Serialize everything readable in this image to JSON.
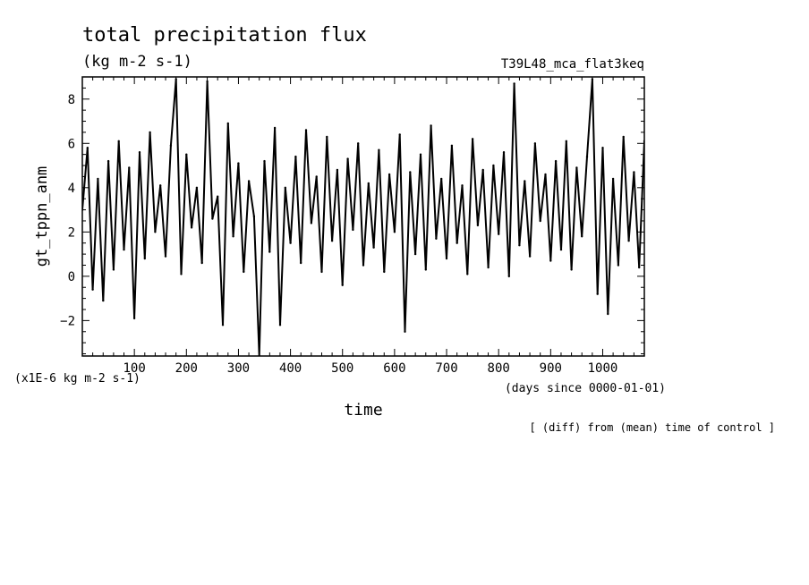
{
  "header": {
    "title": "total precipitation flux",
    "units": "(kg m-2 s-1)",
    "experiment": "T39L48_mca_flat3keq",
    "scale_note": "(x1E-6 kg m-2 s-1)",
    "xaxis_note": "(days since 0000-01-01)",
    "footer": "[ (diff) from (mean) time of control ]"
  },
  "chart_data": {
    "type": "line",
    "title": "total precipitation flux",
    "xlabel": "time",
    "ylabel": "gt_tppn_anm",
    "xlim": [
      0,
      1080
    ],
    "ylim": [
      -3.6,
      9.0
    ],
    "x_ticks": [
      100,
      200,
      300,
      400,
      500,
      600,
      700,
      800,
      900,
      1000
    ],
    "y_ticks": [
      -2,
      0,
      2,
      4,
      6,
      8
    ],
    "grid": false,
    "legend": "none",
    "color": "#000000",
    "series": [
      {
        "x": [
          0,
          10,
          20,
          30,
          40,
          50,
          60,
          70,
          80,
          90,
          100,
          110,
          120,
          130,
          140,
          150,
          160,
          170,
          180,
          190,
          200,
          210,
          220,
          230,
          240,
          250,
          260,
          270,
          280,
          290,
          300,
          310,
          320,
          330,
          340,
          350,
          360,
          370,
          380,
          390,
          400,
          410,
          420,
          430,
          440,
          450,
          460,
          470,
          480,
          490,
          500,
          510,
          520,
          530,
          540,
          550,
          560,
          570,
          580,
          590,
          600,
          610,
          620,
          630,
          640,
          650,
          660,
          670,
          680,
          690,
          700,
          710,
          720,
          730,
          740,
          750,
          760,
          770,
          780,
          790,
          800,
          810,
          820,
          830,
          840,
          850,
          860,
          870,
          880,
          890,
          900,
          910,
          920,
          930,
          940,
          950,
          960,
          970,
          980,
          990,
          1000,
          1010,
          1020,
          1030,
          1040,
          1050,
          1060,
          1070,
          1080
        ],
        "values": [
          3.0,
          5.8,
          -0.6,
          4.4,
          -1.1,
          5.2,
          0.3,
          6.1,
          1.2,
          4.9,
          -1.9,
          5.6,
          0.8,
          6.5,
          2.0,
          4.1,
          0.9,
          5.9,
          8.9,
          0.1,
          5.5,
          2.2,
          4.0,
          0.6,
          8.8,
          2.6,
          3.6,
          -2.2,
          6.9,
          1.8,
          5.1,
          0.2,
          4.3,
          2.7,
          -3.6,
          5.2,
          1.1,
          6.7,
          -2.2,
          4.0,
          1.5,
          5.4,
          0.6,
          6.6,
          2.4,
          4.5,
          0.2,
          6.3,
          1.6,
          4.8,
          -0.4,
          5.3,
          2.1,
          6.0,
          0.5,
          4.2,
          1.3,
          5.7,
          0.2,
          4.6,
          2.0,
          6.4,
          -2.5,
          4.7,
          1.0,
          5.5,
          0.3,
          6.8,
          1.7,
          4.4,
          0.8,
          5.9,
          1.5,
          4.1,
          0.1,
          6.2,
          2.3,
          4.8,
          0.4,
          5.0,
          1.9,
          5.6,
          0.0,
          8.7,
          1.4,
          4.3,
          0.9,
          6.0,
          2.5,
          4.6,
          0.7,
          5.2,
          1.2,
          6.1,
          0.3,
          4.9,
          1.8,
          5.4,
          8.9,
          -0.8,
          5.8,
          -1.7,
          4.4,
          0.5,
          6.3,
          1.6,
          4.7,
          0.4,
          6.1
        ]
      }
    ]
  }
}
